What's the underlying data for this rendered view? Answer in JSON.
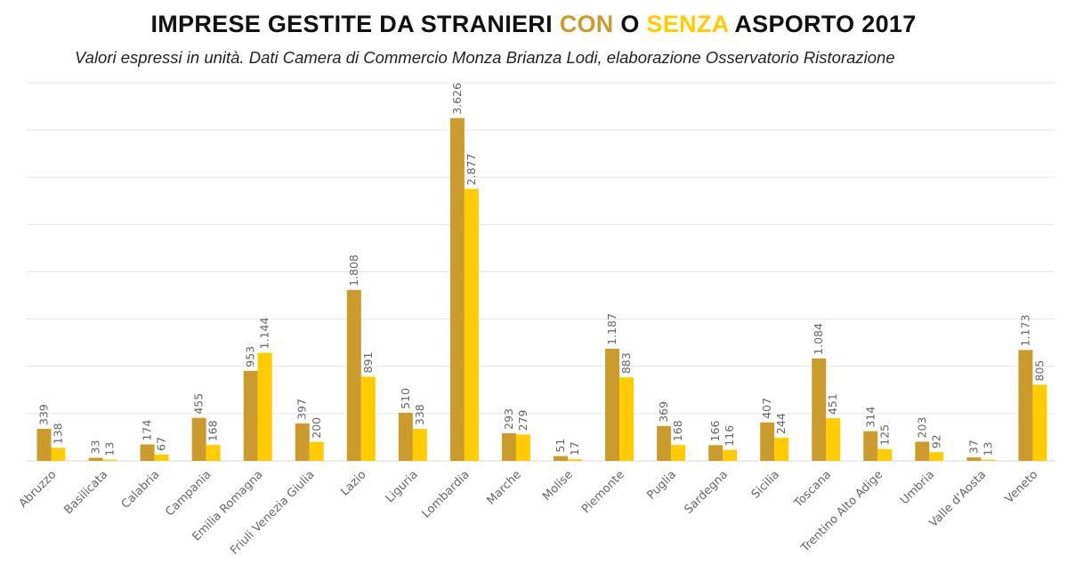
{
  "chart_data": {
    "type": "bar",
    "title_parts": [
      {
        "text": "IMPRESE GESTITE DA STRANIERI ",
        "color": "#111111"
      },
      {
        "text": "CON",
        "color": "#CC9B2E"
      },
      {
        "text": " O ",
        "color": "#111111"
      },
      {
        "text": "SENZA",
        "color": "#FFCC00"
      },
      {
        "text": " ASPORTO 2017",
        "color": "#111111"
      }
    ],
    "title": "IMPRESE GESTITE DA STRANIERI CON O SENZA ASPORTO 2017",
    "subtitle": "Valori espressi in unità. Dati Camera di Commercio Monza Brianza Lodi, elaborazione Osservatorio Ristorazione",
    "xlabel": "",
    "ylabel": "",
    "ylim": [
      0,
      4000
    ],
    "grid_step": 500,
    "grid": true,
    "legend": "none",
    "categories": [
      "Abruzzo",
      "Basilicata",
      "Calabria",
      "Campania",
      "Emilia Romagna",
      "Friuli Venezia Giulia",
      "Lazio",
      "Liguria",
      "Lombardia",
      "Marche",
      "Molise",
      "Piemonte",
      "Puglia",
      "Sardegna",
      "Sicilia",
      "Toscana",
      "Trentino Alto Adige",
      "Umbria",
      "Valle d'Aosta",
      "Veneto"
    ],
    "series": [
      {
        "name": "Con asporto",
        "color": "#CC9B2E",
        "values": [
          339,
          33,
          174,
          455,
          953,
          397,
          1808,
          510,
          3626,
          293,
          51,
          1187,
          369,
          166,
          407,
          1084,
          314,
          203,
          37,
          1173
        ],
        "labels": [
          "339",
          "33",
          "174",
          "455",
          "953",
          "397",
          "1.808",
          "510",
          "3.626",
          "293",
          "51",
          "1.187",
          "369",
          "166",
          "407",
          "1.084",
          "314",
          "203",
          "37",
          "1.173"
        ]
      },
      {
        "name": "Senza asporto",
        "color": "#FFCC00",
        "values": [
          138,
          13,
          67,
          168,
          1144,
          200,
          891,
          338,
          2877,
          279,
          17,
          883,
          168,
          116,
          244,
          451,
          125,
          92,
          13,
          805
        ],
        "labels": [
          "138",
          "13",
          "67",
          "168",
          "1.144",
          "200",
          "891",
          "338",
          "2.877",
          "279",
          "17",
          "883",
          "168",
          "116",
          "244",
          "451",
          "125",
          "92",
          "13",
          "805"
        ]
      }
    ]
  }
}
